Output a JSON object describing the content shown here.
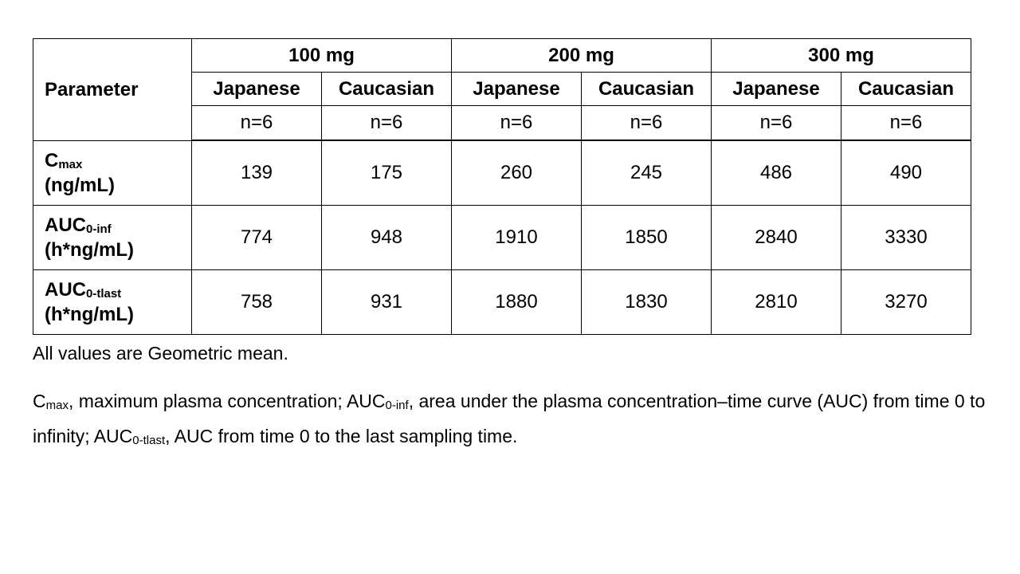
{
  "table": {
    "parameter_header": "Parameter",
    "doses": [
      {
        "label": "100 mg",
        "groups": [
          {
            "label": "Japanese",
            "n": "n=6"
          },
          {
            "label": "Caucasian",
            "n": "n=6"
          }
        ]
      },
      {
        "label": "200 mg",
        "groups": [
          {
            "label": "Japanese",
            "n": "n=6"
          },
          {
            "label": "Caucasian",
            "n": "n=6"
          }
        ]
      },
      {
        "label": "300 mg",
        "groups": [
          {
            "label": "Japanese",
            "n": "n=6"
          },
          {
            "label": "Caucasian",
            "n": "n=6"
          }
        ]
      }
    ],
    "rows": [
      {
        "param": {
          "base": "C",
          "sub": "max",
          "unit": "(ng/mL)"
        },
        "values": [
          139,
          175,
          260,
          245,
          486,
          490
        ]
      },
      {
        "param": {
          "base": "AUC",
          "sub": "0-inf",
          "unit": "(h*ng/mL)"
        },
        "values": [
          774,
          948,
          1910,
          1850,
          2840,
          3330
        ]
      },
      {
        "param": {
          "base": "AUC",
          "sub": "0-tlast",
          "unit": "(h*ng/mL)"
        },
        "values": [
          758,
          931,
          1880,
          1830,
          2810,
          3270
        ]
      }
    ]
  },
  "notes": [
    {
      "parts": [
        {
          "t": "All values are Geometric mean."
        }
      ]
    },
    {
      "parts": [
        {
          "t": "C"
        },
        {
          "s": "max"
        },
        {
          "t": ", maximum plasma concentration; AUC"
        },
        {
          "s": "0-inf"
        },
        {
          "t": ", area under the plasma concentration–time curve (AUC) from time 0 to infinity; AUC"
        },
        {
          "s": "0-tlast"
        },
        {
          "t": ", AUC from time 0 to the last sampling time."
        }
      ]
    }
  ]
}
